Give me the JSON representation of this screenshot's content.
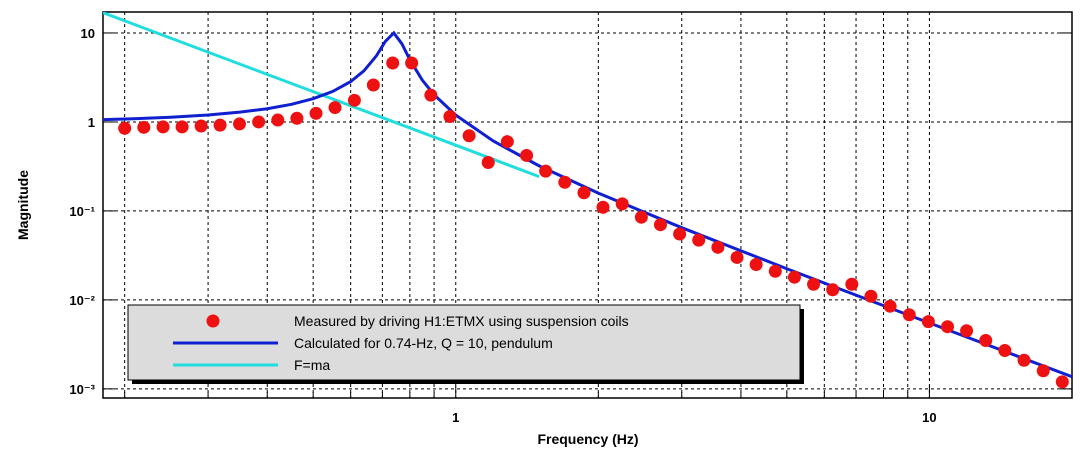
{
  "chart_data": {
    "type": "line",
    "log_x": true,
    "log_y": true,
    "grid": true,
    "legend": "lower left",
    "x_label": "Frequency (Hz)",
    "y_label": "Magnitude",
    "xlim": [
      0.18,
      20
    ],
    "ylim": [
      0.00079,
      17.2
    ],
    "xticks": [
      {
        "value": 0.2,
        "label": null
      },
      {
        "value": 0.3,
        "label": null
      },
      {
        "value": 0.4,
        "label": null
      },
      {
        "value": 0.5,
        "label": null
      },
      {
        "value": 0.6,
        "label": null
      },
      {
        "value": 0.7,
        "label": null
      },
      {
        "value": 0.8,
        "label": null
      },
      {
        "value": 0.9,
        "label": null
      },
      1,
      {
        "value": 2,
        "label": null
      },
      {
        "value": 3,
        "label": null
      },
      {
        "value": 4,
        "label": null
      },
      {
        "value": 5,
        "label": null
      },
      {
        "value": 6,
        "label": null
      },
      {
        "value": 7,
        "label": null
      },
      {
        "value": 8,
        "label": null
      },
      {
        "value": 9,
        "label": null
      },
      10,
      {
        "value": 20,
        "label": null
      }
    ],
    "yticks": [
      10,
      1,
      {
        "value": 0.1,
        "label": "10⁻¹"
      },
      {
        "value": 0.01,
        "label": "10⁻²"
      },
      {
        "value": 0.001,
        "label": "10⁻³"
      }
    ],
    "series": [
      {
        "name": "Measured by driving H1:ETMX using suspension coils",
        "color": "#ee1111",
        "style": "markers",
        "x": [
          0.2,
          0.2195,
          0.241,
          0.2644,
          0.29,
          0.318,
          0.3495,
          0.3836,
          0.421,
          0.462,
          0.507,
          0.556,
          0.611,
          0.67,
          0.736,
          0.807,
          0.886,
          0.972,
          1.067,
          1.171,
          1.285,
          1.411,
          1.548,
          1.699,
          1.865,
          2.046,
          2.246,
          2.465,
          2.705,
          2.969,
          3.258,
          3.576,
          3.925,
          4.307,
          4.727,
          5.188,
          5.694,
          6.249,
          6.858,
          7.526,
          8.26,
          9.066,
          9.95,
          10.92,
          11.98,
          13.15,
          14.43,
          15.84,
          17.39,
          19.08
        ],
        "values": [
          0.85,
          0.87,
          0.88,
          0.88,
          0.9,
          0.92,
          0.95,
          1.0,
          1.05,
          1.1,
          1.25,
          1.45,
          1.75,
          2.6,
          4.6,
          4.6,
          2.0,
          1.15,
          0.7,
          0.35,
          0.6,
          0.42,
          0.28,
          0.21,
          0.16,
          0.11,
          0.12,
          0.085,
          0.07,
          0.055,
          0.047,
          0.039,
          0.03,
          0.025,
          0.021,
          0.018,
          0.015,
          0.013,
          0.015,
          0.011,
          0.0085,
          0.0068,
          0.0057,
          0.005,
          0.0045,
          0.0035,
          0.0027,
          0.0021,
          0.0016,
          0.0012
        ]
      },
      {
        "name": "Calculated for 0.74-Hz, Q = 10, pendulum",
        "color": "#1020d0",
        "style": "line",
        "x": [
          0.18,
          0.2,
          0.25,
          0.3,
          0.35,
          0.4,
          0.45,
          0.5,
          0.55,
          0.6,
          0.64,
          0.68,
          0.71,
          0.74,
          0.77,
          0.8,
          0.85,
          0.9,
          1,
          1.2,
          1.5,
          2,
          3,
          5,
          8,
          12,
          20
        ],
        "values": [
          1.063,
          1.078,
          1.129,
          1.197,
          1.288,
          1.408,
          1.579,
          1.826,
          2.204,
          2.84,
          3.753,
          5.54,
          8.03,
          10,
          7.52,
          4.99,
          2.946,
          2.023,
          1.194,
          0.6106,
          0.321,
          0.1585,
          0.0648,
          0.0224,
          0.00863,
          0.00382,
          0.00137
        ]
      },
      {
        "name": "F=ma",
        "color": "#22dddd",
        "style": "line",
        "x": [
          0.18,
          0.5,
          1,
          1.5
        ],
        "values": [
          16.9,
          2.19,
          0.548,
          0.243
        ]
      }
    ]
  }
}
